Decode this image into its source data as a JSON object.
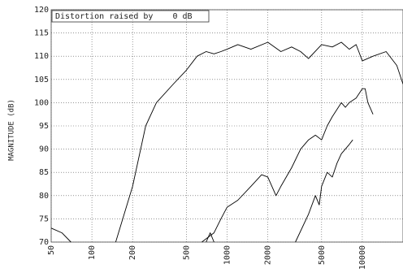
{
  "chart_data": {
    "type": "line",
    "title": "Distortion raised by    0 dB",
    "y_label": "MAGNITUDE (dB)",
    "x_scale": "log",
    "grid": true,
    "xlim": [
      50,
      20000
    ],
    "ylim": [
      70,
      120
    ],
    "xticks": [
      50,
      100,
      200,
      500,
      1000,
      2000,
      5000,
      10000
    ],
    "yticks": [
      70,
      75,
      80,
      85,
      90,
      95,
      100,
      105,
      110,
      115,
      120
    ],
    "series": [
      {
        "color": "#000000",
        "x": [
          50,
          60,
          70,
          100,
          150,
          200,
          250,
          300,
          400,
          500,
          600,
          700,
          800,
          900,
          1000,
          1200,
          1500,
          2000,
          2500,
          3000,
          3500,
          4000,
          5000,
          6000,
          7000,
          8000,
          9000,
          10000,
          12000,
          15000,
          18000,
          20000
        ],
        "values": [
          73,
          72,
          70,
          null,
          70,
          82,
          95,
          100,
          104,
          107,
          110,
          111,
          110.5,
          111,
          111.5,
          112.5,
          111.5,
          113,
          111,
          112,
          111,
          109.5,
          112.5,
          112,
          113,
          111.5,
          112.5,
          109,
          110,
          111,
          108,
          104
        ]
      },
      {
        "color": "#000000",
        "x": [
          650,
          800,
          900,
          1000,
          1200,
          1500,
          1800,
          2000,
          2300,
          2500,
          3000,
          3500,
          4000,
          4500,
          5000,
          5500,
          6000,
          7000,
          7500,
          8000,
          9000,
          10000,
          10500,
          11000,
          12000
        ],
        "values": [
          70,
          72,
          75,
          77.5,
          79,
          82,
          84.5,
          84,
          80,
          82,
          86,
          90,
          92,
          93,
          92,
          95,
          97,
          100,
          99,
          100,
          101,
          103,
          103,
          100,
          97.5
        ]
      },
      {
        "color": "#000000",
        "x": [
          700,
          750,
          800,
          1000,
          3200,
          4000,
          4500,
          4800,
          5000,
          5500,
          6000,
          6500,
          7000,
          8000,
          8500
        ],
        "values": [
          70,
          72,
          70,
          null,
          70,
          76,
          80,
          78,
          82,
          85,
          84,
          87,
          89,
          91,
          92
        ]
      }
    ]
  }
}
